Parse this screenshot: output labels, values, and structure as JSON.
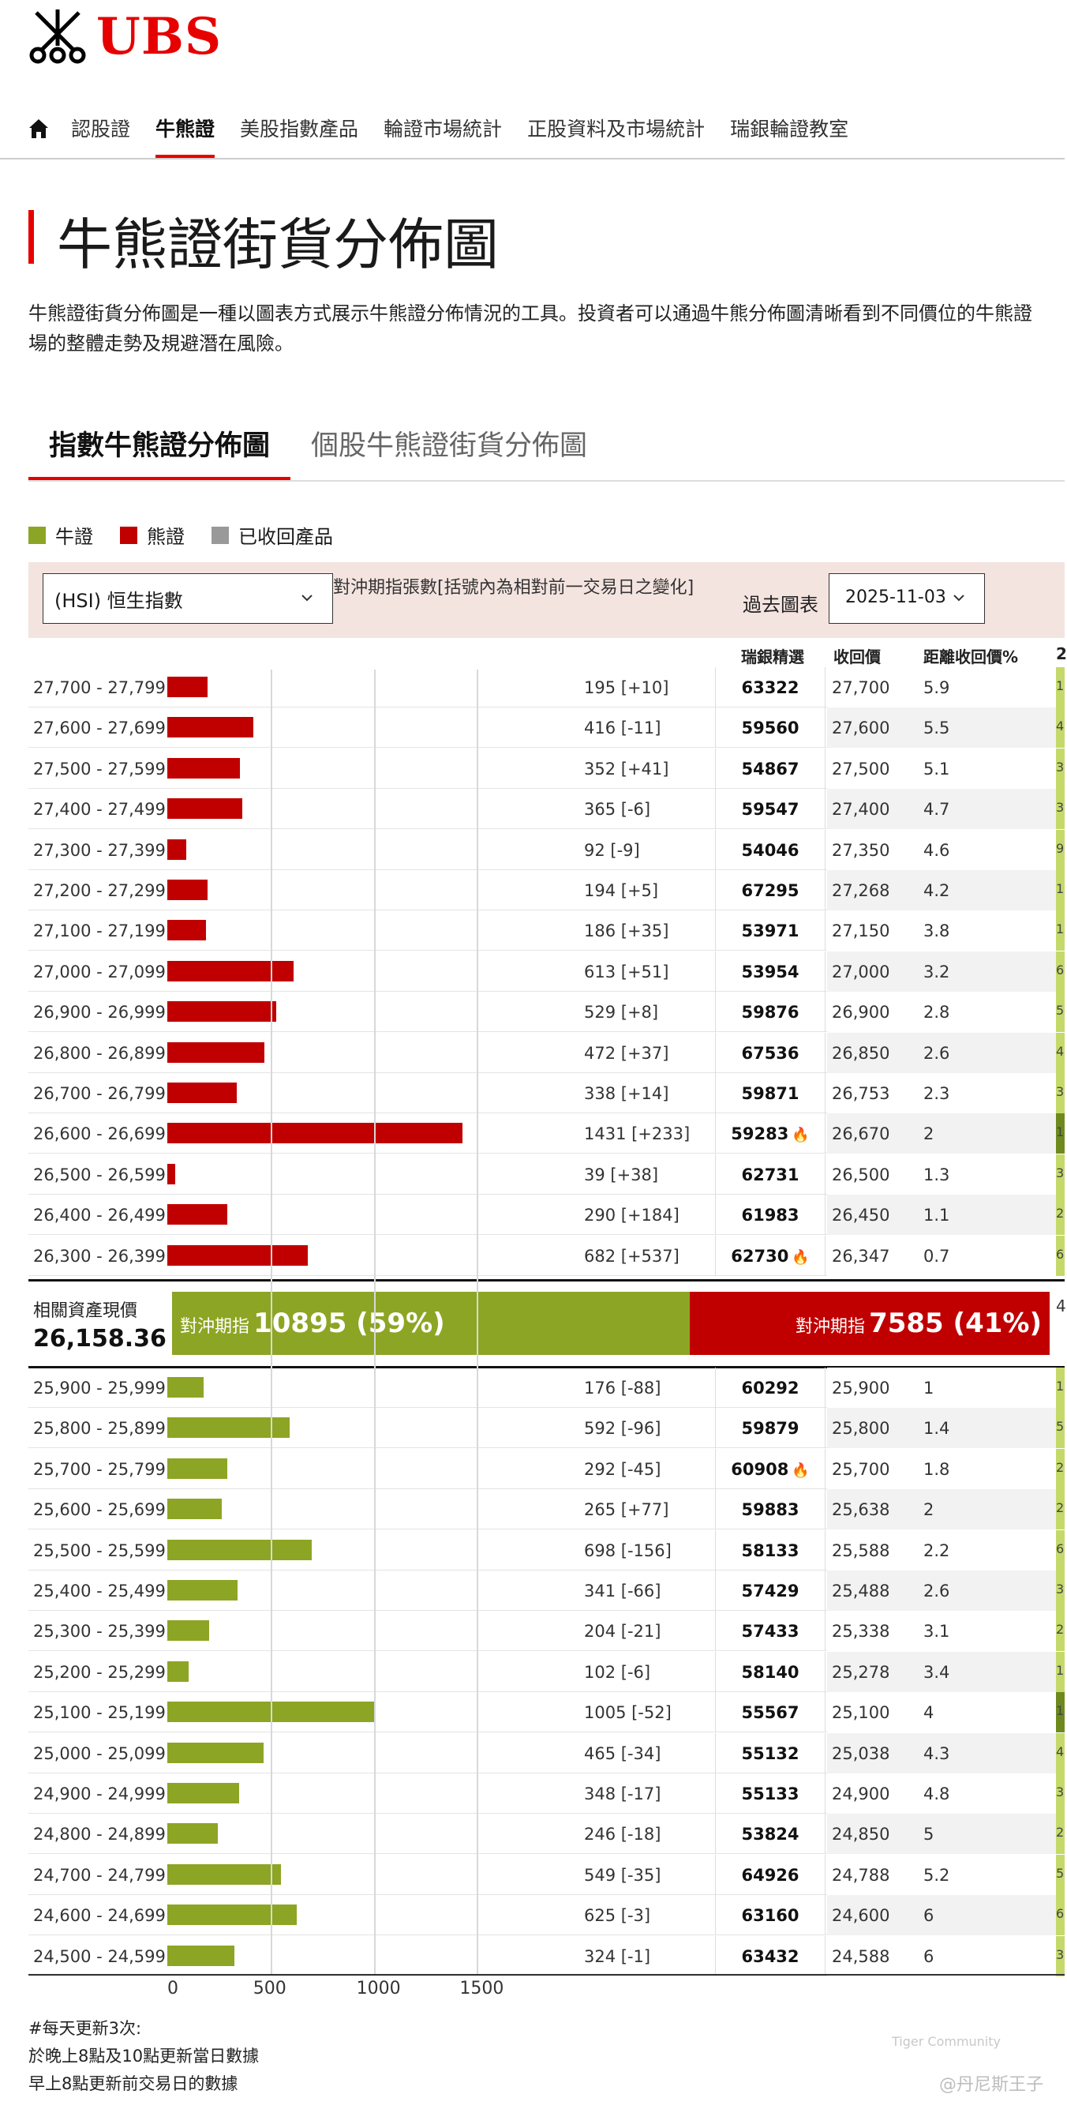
{
  "header": {
    "logo_text": "UBS",
    "nav": [
      {
        "label": "認股證",
        "active": false
      },
      {
        "label": "牛熊證",
        "active": true
      },
      {
        "label": "美股指數產品",
        "active": false
      },
      {
        "label": "輪證市場統計",
        "active": false
      },
      {
        "label": "正股資料及市場統計",
        "active": false
      },
      {
        "label": "瑞銀輪證教室",
        "active": false
      }
    ]
  },
  "page": {
    "title": "牛熊證街貨分佈圖",
    "intro": "牛熊證街貨分佈圖是一種以圖表方式展示牛熊證分佈情況的工具。投資者可以通過牛熊分佈圖清晰看到不同價位的牛熊證\n場的整體走勢及規避潛在風險。"
  },
  "tabs": [
    {
      "label": "指數牛熊證分佈圖",
      "active": true
    },
    {
      "label": "個股牛熊證街貨分佈圖",
      "active": false
    }
  ],
  "legend": [
    {
      "label": "牛證",
      "color": "#8da524"
    },
    {
      "label": "熊證",
      "color": "#c00000"
    },
    {
      "label": "已收回產品",
      "color": "#999999"
    }
  ],
  "controls": {
    "index_select": "(HSI) 恒生指數",
    "hedge_caption": "對沖期指張數[括號內為相對前一交易日之變化]",
    "past_label": "過去圖表",
    "date_value": "2025-11-03"
  },
  "table_headers": {
    "code": "瑞銀精選",
    "call_price": "收回價",
    "distance": "距離收回價%",
    "edge": "2"
  },
  "bear_rows": [
    {
      "range": "27,700 - 27,799",
      "value": 195,
      "count": "195 [+10]",
      "code": "63322",
      "hot": false,
      "call": "27,700",
      "dist": "5.9",
      "shade": "#ffffff",
      "edge": "1",
      "edge_dark": false
    },
    {
      "range": "27,600 - 27,699",
      "value": 416,
      "count": "416 [-11]",
      "code": "59560",
      "hot": false,
      "call": "27,600",
      "dist": "5.5",
      "shade": "#f2f2f2",
      "edge": "4",
      "edge_dark": false
    },
    {
      "range": "27,500 - 27,599",
      "value": 352,
      "count": "352 [+41]",
      "code": "54867",
      "hot": false,
      "call": "27,500",
      "dist": "5.1",
      "shade": "#ffffff",
      "edge": "3",
      "edge_dark": false
    },
    {
      "range": "27,400 - 27,499",
      "value": 365,
      "count": "365 [-6]",
      "code": "59547",
      "hot": false,
      "call": "27,400",
      "dist": "4.7",
      "shade": "#f2f2f2",
      "edge": "3",
      "edge_dark": false
    },
    {
      "range": "27,300 - 27,399",
      "value": 92,
      "count": "92 [-9]",
      "code": "54046",
      "hot": false,
      "call": "27,350",
      "dist": "4.6",
      "shade": "#ffffff",
      "edge": "9",
      "edge_dark": false
    },
    {
      "range": "27,200 - 27,299",
      "value": 194,
      "count": "194 [+5]",
      "code": "67295",
      "hot": false,
      "call": "27,268",
      "dist": "4.2",
      "shade": "#f2f2f2",
      "edge": "1",
      "edge_dark": false
    },
    {
      "range": "27,100 - 27,199",
      "value": 186,
      "count": "186 [+35]",
      "code": "53971",
      "hot": false,
      "call": "27,150",
      "dist": "3.8",
      "shade": "#ffffff",
      "edge": "1",
      "edge_dark": false
    },
    {
      "range": "27,000 - 27,099",
      "value": 613,
      "count": "613 [+51]",
      "code": "53954",
      "hot": false,
      "call": "27,000",
      "dist": "3.2",
      "shade": "#f2f2f2",
      "edge": "6",
      "edge_dark": false
    },
    {
      "range": "26,900 - 26,999",
      "value": 529,
      "count": "529 [+8]",
      "code": "59876",
      "hot": false,
      "call": "26,900",
      "dist": "2.8",
      "shade": "#ffffff",
      "edge": "5",
      "edge_dark": false
    },
    {
      "range": "26,800 - 26,899",
      "value": 472,
      "count": "472 [+37]",
      "code": "67536",
      "hot": false,
      "call": "26,850",
      "dist": "2.6",
      "shade": "#f2f2f2",
      "edge": "4",
      "edge_dark": false
    },
    {
      "range": "26,700 - 26,799",
      "value": 338,
      "count": "338 [+14]",
      "code": "59871",
      "hot": false,
      "call": "26,753",
      "dist": "2.3",
      "shade": "#ffffff",
      "edge": "3",
      "edge_dark": false
    },
    {
      "range": "26,600 - 26,699",
      "value": 1431,
      "count": "1431 [+233]",
      "code": "59283",
      "hot": true,
      "call": "26,670",
      "dist": "2",
      "shade": "#f2f2f2",
      "edge": "1",
      "edge_dark": true
    },
    {
      "range": "26,500 - 26,599",
      "value": 39,
      "count": "39 [+38]",
      "code": "62731",
      "hot": false,
      "call": "26,500",
      "dist": "1.3",
      "shade": "#ffffff",
      "edge": "3",
      "edge_dark": false
    },
    {
      "range": "26,400 - 26,499",
      "value": 290,
      "count": "290 [+184]",
      "code": "61983",
      "hot": false,
      "call": "26,450",
      "dist": "1.1",
      "shade": "#f2f2f2",
      "edge": "2",
      "edge_dark": false
    },
    {
      "range": "26,300 - 26,399",
      "value": 682,
      "count": "682 [+537]",
      "code": "62730",
      "hot": true,
      "call": "26,347",
      "dist": "0.7",
      "shade": "#ffffff",
      "edge": "6",
      "edge_dark": false
    }
  ],
  "center": {
    "label": "相關資產現價",
    "price": "26,158.36",
    "bull_prefix": "對沖期指",
    "bull_value": "10895 (59%)",
    "bear_prefix": "對沖期指",
    "bear_value": "7585 (41%)",
    "bull_share": 59,
    "bear_share": 41,
    "edge": "4"
  },
  "bull_rows": [
    {
      "range": "25,900 - 25,999",
      "value": 176,
      "count": "176 [-88]",
      "code": "60292",
      "hot": false,
      "call": "25,900",
      "dist": "1",
      "shade": "#ffffff",
      "edge": "1",
      "edge_dark": false
    },
    {
      "range": "25,800 - 25,899",
      "value": 592,
      "count": "592 [-96]",
      "code": "59879",
      "hot": false,
      "call": "25,800",
      "dist": "1.4",
      "shade": "#f2f2f2",
      "edge": "5",
      "edge_dark": false
    },
    {
      "range": "25,700 - 25,799",
      "value": 292,
      "count": "292 [-45]",
      "code": "60908",
      "hot": true,
      "call": "25,700",
      "dist": "1.8",
      "shade": "#ffffff",
      "edge": "2",
      "edge_dark": false
    },
    {
      "range": "25,600 - 25,699",
      "value": 265,
      "count": "265 [+77]",
      "code": "59883",
      "hot": false,
      "call": "25,638",
      "dist": "2",
      "shade": "#f2f2f2",
      "edge": "2",
      "edge_dark": false
    },
    {
      "range": "25,500 - 25,599",
      "value": 698,
      "count": "698 [-156]",
      "code": "58133",
      "hot": false,
      "call": "25,588",
      "dist": "2.2",
      "shade": "#ffffff",
      "edge": "6",
      "edge_dark": false
    },
    {
      "range": "25,400 - 25,499",
      "value": 341,
      "count": "341 [-66]",
      "code": "57429",
      "hot": false,
      "call": "25,488",
      "dist": "2.6",
      "shade": "#f2f2f2",
      "edge": "3",
      "edge_dark": false
    },
    {
      "range": "25,300 - 25,399",
      "value": 204,
      "count": "204 [-21]",
      "code": "57433",
      "hot": false,
      "call": "25,338",
      "dist": "3.1",
      "shade": "#ffffff",
      "edge": "2",
      "edge_dark": false
    },
    {
      "range": "25,200 - 25,299",
      "value": 102,
      "count": "102 [-6]",
      "code": "58140",
      "hot": false,
      "call": "25,278",
      "dist": "3.4",
      "shade": "#f2f2f2",
      "edge": "1",
      "edge_dark": false
    },
    {
      "range": "25,100 - 25,199",
      "value": 1005,
      "count": "1005 [-52]",
      "code": "55567",
      "hot": false,
      "call": "25,100",
      "dist": "4",
      "shade": "#ffffff",
      "edge": "1",
      "edge_dark": true
    },
    {
      "range": "25,000 - 25,099",
      "value": 465,
      "count": "465 [-34]",
      "code": "55132",
      "hot": false,
      "call": "25,038",
      "dist": "4.3",
      "shade": "#f2f2f2",
      "edge": "4",
      "edge_dark": false
    },
    {
      "range": "24,900 - 24,999",
      "value": 348,
      "count": "348 [-17]",
      "code": "55133",
      "hot": false,
      "call": "24,900",
      "dist": "4.8",
      "shade": "#ffffff",
      "edge": "3",
      "edge_dark": false
    },
    {
      "range": "24,800 - 24,899",
      "value": 246,
      "count": "246 [-18]",
      "code": "53824",
      "hot": false,
      "call": "24,850",
      "dist": "5",
      "shade": "#f2f2f2",
      "edge": "2",
      "edge_dark": false
    },
    {
      "range": "24,700 - 24,799",
      "value": 549,
      "count": "549 [-35]",
      "code": "64926",
      "hot": false,
      "call": "24,788",
      "dist": "5.2",
      "shade": "#ffffff",
      "edge": "5",
      "edge_dark": false
    },
    {
      "range": "24,600 - 24,699",
      "value": 625,
      "count": "625 [-3]",
      "code": "63160",
      "hot": false,
      "call": "24,600",
      "dist": "6",
      "shade": "#f2f2f2",
      "edge": "6",
      "edge_dark": false
    },
    {
      "range": "24,500 - 24,599",
      "value": 324,
      "count": "324 [-1]",
      "code": "63432",
      "hot": false,
      "call": "24,588",
      "dist": "6",
      "shade": "#ffffff",
      "edge": "3",
      "edge_dark": false
    }
  ],
  "axis": {
    "ticks": [
      "0",
      "500",
      "1000",
      "1500"
    ],
    "tick_values": [
      0,
      500,
      1000,
      1500
    ]
  },
  "footnote": [
    "#每天更新3次:",
    "於晚上8點及10點更新當日數據",
    "早上8點更新前交易日的數據"
  ],
  "watermark": {
    "brand": "Tiger Community",
    "user": "@丹尼斯王子"
  },
  "colors": {
    "bull": "#8da524",
    "bear": "#c00000",
    "accent": "#e60000"
  }
}
